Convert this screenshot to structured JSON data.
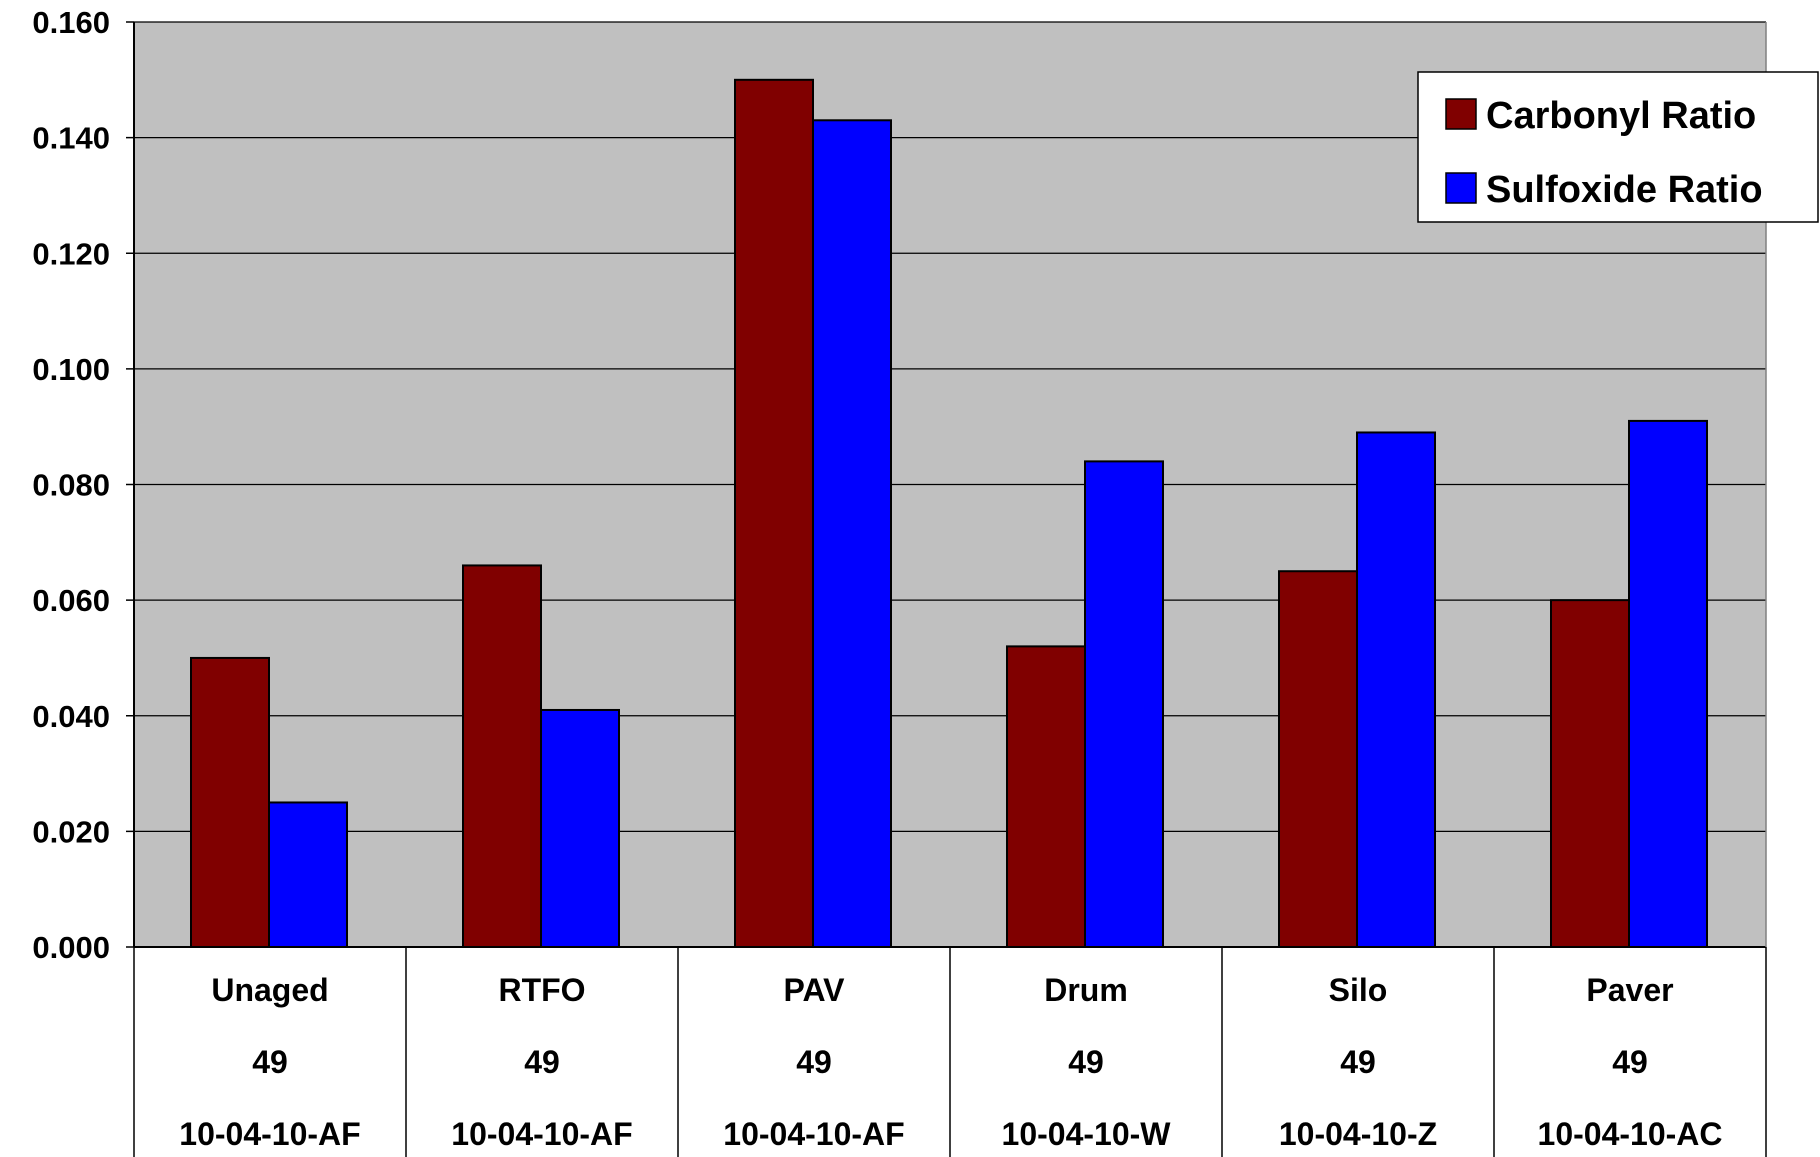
{
  "chart_data": {
    "type": "bar",
    "title": "",
    "xlabel": "",
    "ylabel": "",
    "ylim": [
      0,
      0.16
    ],
    "y_ticks": [
      "0.000",
      "0.020",
      "0.040",
      "0.060",
      "0.080",
      "0.100",
      "0.120",
      "0.140",
      "0.160"
    ],
    "grid": true,
    "legend_position": "top-right",
    "plot_background": "#c0c0c0",
    "categories": [
      {
        "lines": [
          "Unaged",
          "49",
          "10-04-10-AF"
        ]
      },
      {
        "lines": [
          "RTFO",
          "49",
          "10-04-10-AF"
        ]
      },
      {
        "lines": [
          "PAV",
          "49",
          "10-04-10-AF"
        ]
      },
      {
        "lines": [
          "Drum",
          "49",
          "10-04-10-W"
        ]
      },
      {
        "lines": [
          "Silo",
          "49",
          "10-04-10-Z"
        ]
      },
      {
        "lines": [
          "Paver",
          "49",
          "10-04-10-AC"
        ]
      }
    ],
    "series": [
      {
        "name": "Carbonyl Ratio",
        "color": "#800000",
        "values": [
          0.05,
          0.066,
          0.15,
          0.052,
          0.065,
          0.06
        ]
      },
      {
        "name": "Sulfoxide Ratio",
        "color": "#0000ff",
        "values": [
          0.025,
          0.041,
          0.143,
          0.084,
          0.089,
          0.091
        ]
      }
    ]
  }
}
